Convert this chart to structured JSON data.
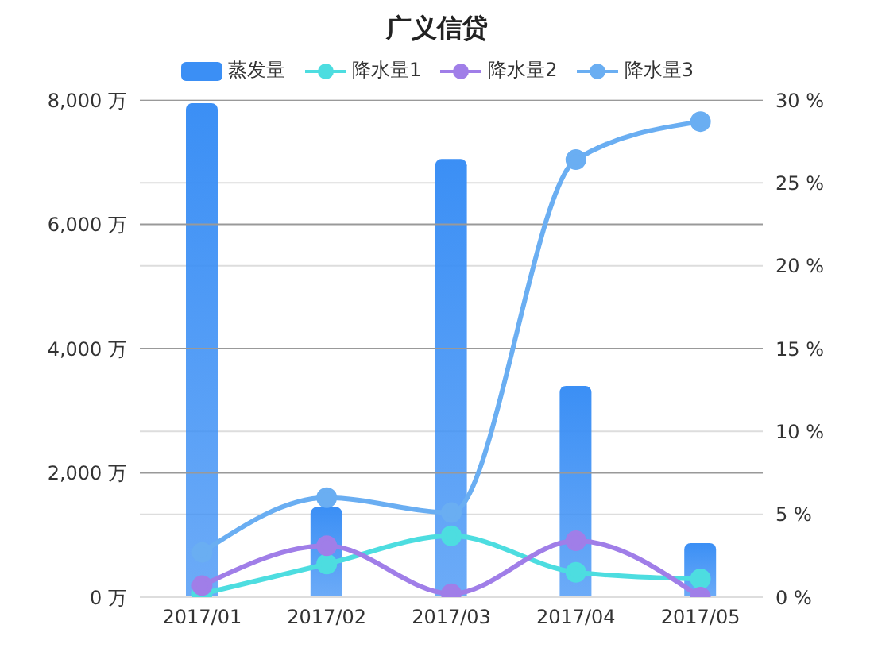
{
  "chart_data": {
    "type": "bar",
    "title": "广义信贷",
    "categories": [
      "2017/01",
      "2017/02",
      "2017/03",
      "2017/04",
      "2017/05"
    ],
    "series": [
      {
        "name": "蒸发量",
        "color": "#3b8ff5",
        "values": [
          7950,
          1450,
          7050,
          3400,
          870
        ]
      },
      {
        "name": "降水量1",
        "type": "line",
        "axis": "y2",
        "color": "#4ddde0",
        "values": [
          0.2,
          2.0,
          3.7,
          1.5,
          1.1
        ]
      },
      {
        "name": "降水量2",
        "type": "line",
        "axis": "y2",
        "color": "#a07ee8",
        "values": [
          0.7,
          3.1,
          0.2,
          3.4,
          0
        ]
      },
      {
        "name": "降水量3",
        "type": "line",
        "axis": "y2",
        "color": "#6aaef2",
        "values": [
          2.7,
          6.0,
          5.1,
          26.4,
          28.7
        ]
      }
    ],
    "ylim": [
      0,
      8000
    ],
    "yticks": [
      {
        "value": 0,
        "label": "0 万"
      },
      {
        "value": 2000,
        "label": "2,000 万"
      },
      {
        "value": 4000,
        "label": "4,000 万"
      },
      {
        "value": 6000,
        "label": "6,000 万"
      },
      {
        "value": 8000,
        "label": "8,000 万"
      }
    ],
    "y2lim": [
      0,
      30
    ],
    "y2ticks": [
      {
        "value": 0,
        "label": "0 %"
      },
      {
        "value": 5,
        "label": "5 %"
      },
      {
        "value": 10,
        "label": "10 %"
      },
      {
        "value": 15,
        "label": "15 %"
      },
      {
        "value": 20,
        "label": "20 %"
      },
      {
        "value": 25,
        "label": "25 %"
      },
      {
        "value": 30,
        "label": "30 %"
      }
    ],
    "grid": true,
    "legend": "top",
    "marker": "circle"
  }
}
